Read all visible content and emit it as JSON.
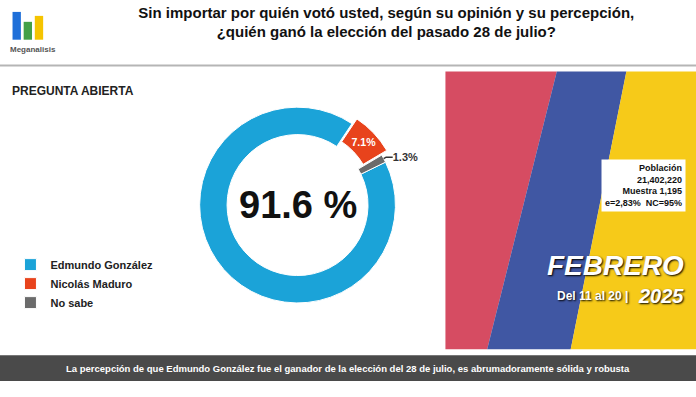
{
  "chart_data": {
    "type": "pie",
    "title": "Sin importar por quién votó usted, según su opinión y su percepción,\n¿quién ganó la elección del pasado 28 de julio?",
    "subtitle": "PREGUNTA ABIERTA",
    "logo": "Meganalisis",
    "categories": [
      "Edmundo González",
      "Nicolás Maduro",
      "No sabe"
    ],
    "values": [
      91.6,
      7.1,
      1.3
    ],
    "value_labels": [
      "91.6 %",
      "7.1%",
      "1.3%"
    ],
    "colors": [
      "#1ba3d8",
      "#e8431c",
      "#6b6b6b"
    ],
    "data_labels": true,
    "legend": "left",
    "sample_info": [
      "Población",
      "21,402,220",
      "Muestra 1,195",
      "e=2,83%  NC=95%"
    ],
    "period": {
      "month": "FEBRERO",
      "days": "Del 11 al 20 |",
      "year": "2025"
    },
    "footer": "La percepción de que Edmundo González fue el ganador de la elección del 28 de julio, es abrumadoramente sólida y robusta"
  }
}
